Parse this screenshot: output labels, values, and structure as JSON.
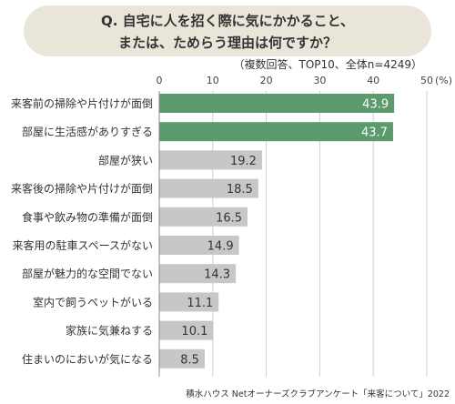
{
  "title": {
    "line1": "Q. 自宅に人を招く際に気にかかること、",
    "line2": "または、ためらう理由は何ですか？"
  },
  "note": "（複数回答、TOP10、全体n=4249）",
  "source": "積水ハウス Netオーナーズクラブアンケート「来客について」2022",
  "colors": {
    "highlight": "#5b9a6c",
    "normal": "#c7c7c7",
    "highlight_text": "#ffffff",
    "normal_text": "#333333",
    "title_bg": "#e9e6d9"
  },
  "chart_data": {
    "type": "bar",
    "orientation": "horizontal",
    "title": "Q. 自宅に人を招く際に気にかかること、または、ためらう理由は何ですか？",
    "unit_label": "(%)",
    "xlim": [
      0,
      50
    ],
    "ticks": [
      "0",
      "10",
      "20",
      "30",
      "40",
      "50"
    ],
    "grid": true,
    "categories": [
      "来客前の掃除や片付けが面倒",
      "部屋に生活感がありすぎる",
      "部屋が狭い",
      "来客後の掃除や片付けが面倒",
      "食事や飲み物の準備が面倒",
      "来客用の駐車スペースがない",
      "部屋が魅力的な空間でない",
      "室内で飼うペットがいる",
      "家族に気兼ねする",
      "住まいのにおいが気になる"
    ],
    "values": [
      43.9,
      43.7,
      19.2,
      18.5,
      16.5,
      14.9,
      14.3,
      11.1,
      10.1,
      8.5
    ],
    "value_labels": [
      "43.9",
      "43.7",
      "19.2",
      "18.5",
      "16.5",
      "14.9",
      "14.3",
      "11.1",
      "10.1",
      "8.5"
    ],
    "highlighted": [
      true,
      true,
      false,
      false,
      false,
      false,
      false,
      false,
      false,
      false
    ]
  }
}
